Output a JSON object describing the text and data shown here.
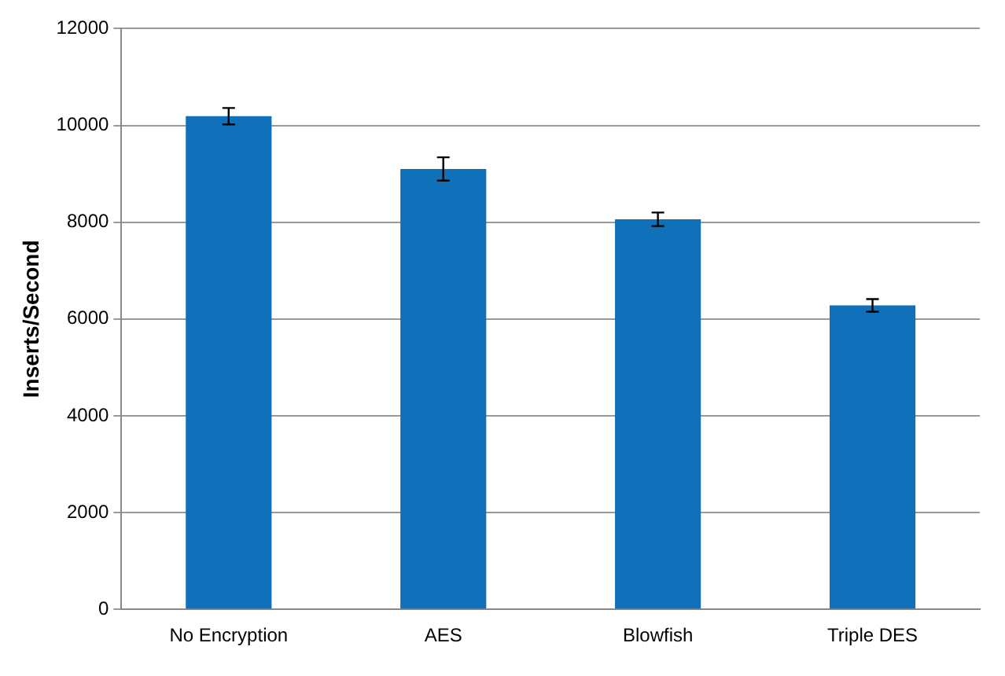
{
  "chart_data": {
    "type": "bar",
    "ylabel": "Inserts/Second",
    "categories": [
      "No Encryption",
      "AES",
      "Blowfish",
      "Triple DES"
    ],
    "values": [
      10190,
      9100,
      8060,
      6280
    ],
    "errors": [
      170,
      240,
      140,
      130
    ],
    "color": "#1170ba",
    "ylim": [
      0,
      12000
    ],
    "yticks": [
      0,
      2000,
      4000,
      6000,
      8000,
      10000,
      12000
    ],
    "grid": "y",
    "legend": false
  }
}
